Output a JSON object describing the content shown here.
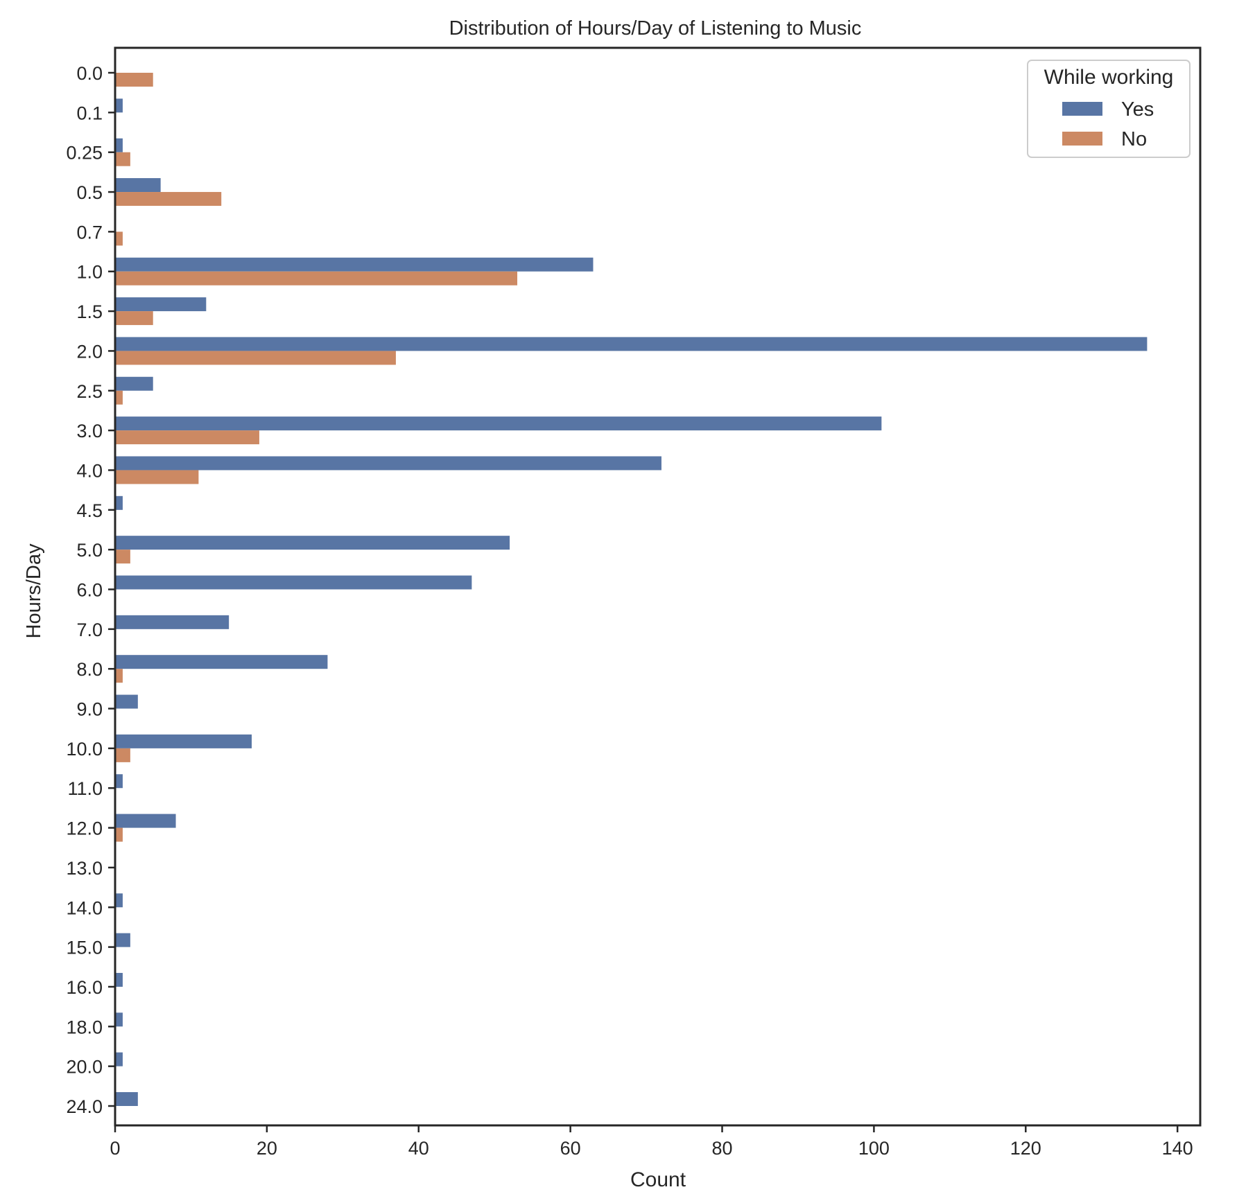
{
  "chart_data": {
    "type": "bar",
    "orientation": "horizontal",
    "title": "Distribution of Hours/Day of Listening to Music",
    "xlabel": "Count",
    "ylabel": "Hours/Day",
    "xlim": [
      0,
      143
    ],
    "xticks": [
      0,
      20,
      40,
      60,
      80,
      100,
      120,
      140
    ],
    "grid": false,
    "categories": [
      "0.0",
      "0.1",
      "0.25",
      "0.5",
      "0.7",
      "1.0",
      "1.5",
      "2.0",
      "2.5",
      "3.0",
      "4.0",
      "4.5",
      "5.0",
      "6.0",
      "7.0",
      "8.0",
      "9.0",
      "10.0",
      "11.0",
      "12.0",
      "13.0",
      "14.0",
      "15.0",
      "16.0",
      "18.0",
      "20.0",
      "24.0"
    ],
    "series": [
      {
        "name": "Yes",
        "color": "#5875a4",
        "values": [
          0,
          1,
          1,
          6,
          0,
          63,
          12,
          136,
          5,
          101,
          72,
          1,
          52,
          47,
          15,
          28,
          3,
          18,
          1,
          8,
          0,
          1,
          2,
          1,
          1,
          1,
          3
        ]
      },
      {
        "name": "No",
        "color": "#cc8963",
        "values": [
          5,
          0,
          2,
          14,
          1,
          53,
          5,
          37,
          1,
          19,
          11,
          0,
          2,
          0,
          0,
          1,
          0,
          2,
          0,
          1,
          0,
          0,
          0,
          0,
          0,
          0,
          0
        ]
      }
    ],
    "legend": {
      "title": "While working",
      "placement": "top-right"
    }
  }
}
